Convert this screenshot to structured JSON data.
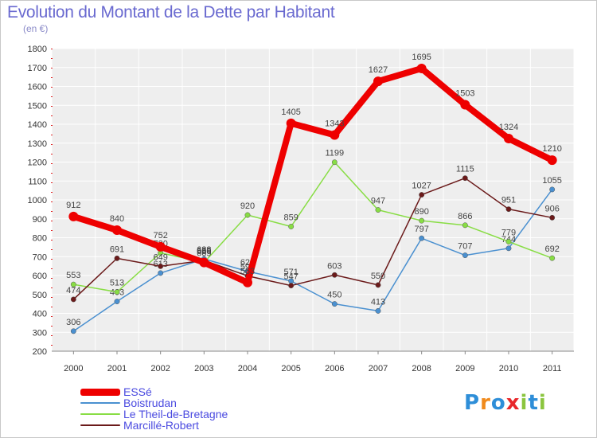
{
  "title": "Evolution du Montant de la Dette par Habitant",
  "subtitle": "(en €)",
  "logo": {
    "text": "Proxiti",
    "colors": [
      "#2e8ed8",
      "#f08a1c",
      "#2e8ed8",
      "#e8262a",
      "#8bc53f",
      "#2e8ed8",
      "#8bc53f"
    ]
  },
  "chart_data": {
    "type": "line",
    "x": [
      "2000",
      "2001",
      "2002",
      "2003",
      "2004",
      "2005",
      "2006",
      "2007",
      "2008",
      "2009",
      "2010",
      "2011"
    ],
    "ylim": [
      200,
      1800
    ],
    "yticks": [
      200,
      300,
      400,
      500,
      600,
      700,
      800,
      900,
      1000,
      1100,
      1200,
      1300,
      1400,
      1500,
      1600,
      1700,
      1800
    ],
    "grid": true,
    "legend_position": "bottom-left",
    "series": [
      {
        "name": "ESSé",
        "color": "#ee0000",
        "values": [
          912,
          840,
          752,
          669,
          563,
          1405,
          1343,
          1627,
          1695,
          1503,
          1324,
          1210
        ]
      },
      {
        "name": "Boistrudan",
        "color": "#4a90d0",
        "values": [
          306,
          463,
          613,
          688,
          622,
          571,
          450,
          413,
          797,
          707,
          744,
          1055
        ]
      },
      {
        "name": "Le Theil-de-Bretagne",
        "color": "#88dd44",
        "values": [
          553,
          513,
          720,
          669,
          920,
          859,
          1199,
          947,
          890,
          866,
          779,
          692
        ]
      },
      {
        "name": "Marcillé-Robert",
        "color": "#6b1a1a",
        "values": [
          474,
          691,
          649,
          680,
          598,
          547,
          603,
          550,
          1027,
          1115,
          951,
          906
        ]
      }
    ]
  }
}
